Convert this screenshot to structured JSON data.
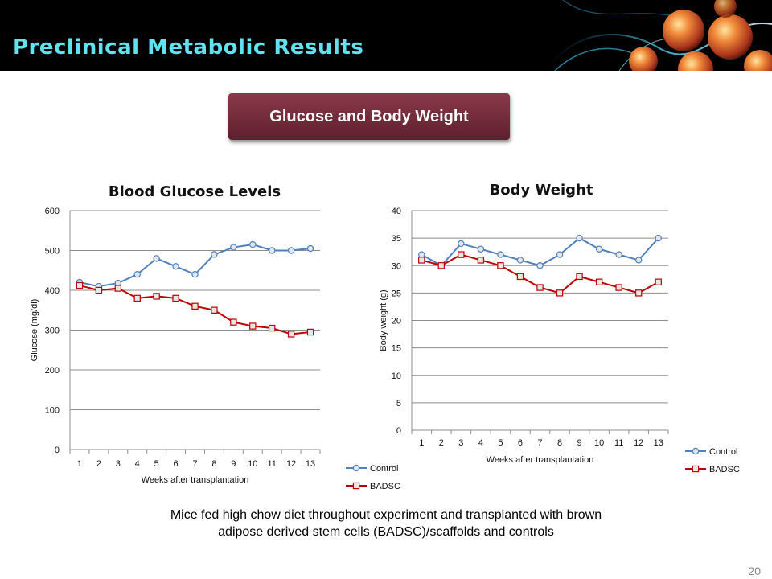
{
  "header": {
    "title": "Preclinical Metabolic Results"
  },
  "section_button": {
    "label": "Glucose and Body Weight"
  },
  "caption": {
    "line1": "Mice fed high chow diet throughout experiment and transplanted with brown",
    "line2": "adipose derived stem cells (BADSC)/scaffolds and controls"
  },
  "page_number": "20",
  "colors": {
    "control": "#4f81bd",
    "badsc": "#c00000",
    "header_bg": "#000000",
    "title": "#5fe3f0",
    "button": "#6e2836"
  },
  "chart_data": [
    {
      "type": "line",
      "title": "Blood Glucose Levels",
      "xlabel": "Weeks after transplantation",
      "ylabel": "Glucose (mg/dl)",
      "categories": [
        "1",
        "2",
        "3",
        "4",
        "5",
        "6",
        "7",
        "8",
        "9",
        "10",
        "11",
        "12",
        "13"
      ],
      "ylim": [
        0,
        600
      ],
      "yticks": [
        0,
        100,
        200,
        300,
        400,
        500,
        600
      ],
      "grid": true,
      "legend": "bottom-right",
      "series": [
        {
          "name": "Control",
          "marker": "circle",
          "values": [
            420,
            410,
            418,
            440,
            480,
            460,
            440,
            490,
            508,
            515,
            500,
            500,
            505
          ]
        },
        {
          "name": "BADSC",
          "marker": "square",
          "values": [
            412,
            400,
            405,
            380,
            385,
            380,
            360,
            350,
            320,
            310,
            305,
            290,
            295
          ]
        }
      ]
    },
    {
      "type": "line",
      "title": "Body Weight",
      "xlabel": "Weeks after transplantation",
      "ylabel": "Body weight (g)",
      "categories": [
        "1",
        "2",
        "3",
        "4",
        "5",
        "6",
        "7",
        "8",
        "9",
        "10",
        "11",
        "12",
        "13"
      ],
      "ylim": [
        0,
        40
      ],
      "yticks": [
        0,
        5,
        10,
        15,
        20,
        25,
        30,
        35,
        40
      ],
      "grid": true,
      "legend": "right",
      "series": [
        {
          "name": "Control",
          "marker": "circle",
          "values": [
            32,
            30,
            34,
            33,
            32,
            31,
            30,
            32,
            35,
            33,
            32,
            31,
            35
          ]
        },
        {
          "name": "BADSC",
          "marker": "square",
          "values": [
            31,
            30,
            32,
            31,
            30,
            28,
            26,
            25,
            28,
            27,
            26,
            25,
            27
          ]
        }
      ]
    }
  ]
}
